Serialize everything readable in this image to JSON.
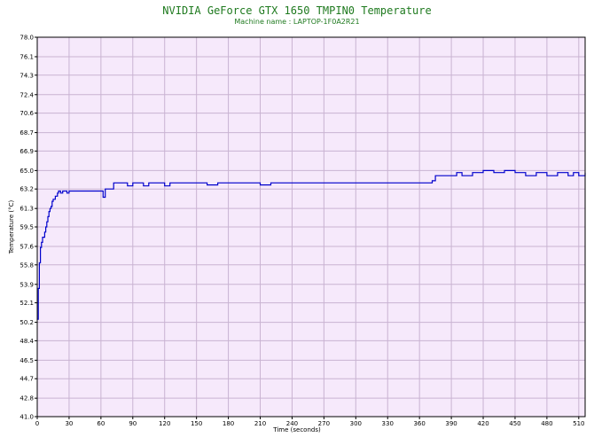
{
  "chart_data": {
    "type": "line",
    "title": "NVIDIA GeForce GTX 1650 TMPIN0 Temperature",
    "subtitle": "Machine name : LAPTOP-1F0A2R21",
    "xlabel": "Time (seconds)",
    "ylabel": "Temperature (°C)",
    "xlim": [
      0,
      516
    ],
    "ylim": [
      41.0,
      78.0
    ],
    "grid": true,
    "x_ticks": [
      "0",
      "30",
      "60",
      "90",
      "120",
      "150",
      "180",
      "210",
      "240",
      "270",
      "300",
      "330",
      "360",
      "390",
      "420",
      "450",
      "480",
      "510"
    ],
    "y_ticks": [
      "41.0",
      "42.8",
      "44.7",
      "46.5",
      "48.4",
      "50.2",
      "52.1",
      "53.9",
      "55.8",
      "57.6",
      "59.5",
      "61.3",
      "63.2",
      "65.0",
      "66.9",
      "68.7",
      "70.6",
      "72.4",
      "74.3",
      "76.1",
      "78.0"
    ],
    "colors": {
      "plot_background": "#f6e9fb",
      "grid": "#c9b3d2",
      "line": "#0000cc",
      "title": "#1f7a1f"
    },
    "series": [
      {
        "x": [
          0,
          1,
          2,
          3,
          4,
          5,
          6,
          7,
          8,
          9,
          10,
          11,
          12,
          13,
          14,
          15,
          16,
          17,
          18,
          19,
          20,
          21,
          22,
          24,
          26,
          28,
          30,
          35,
          40,
          45,
          50,
          55,
          60,
          62,
          64,
          66,
          68,
          70,
          72,
          75,
          80,
          85,
          90,
          95,
          100,
          105,
          110,
          115,
          120,
          125,
          130,
          135,
          140,
          150,
          160,
          170,
          180,
          190,
          200,
          210,
          220,
          230,
          240,
          250,
          260,
          270,
          280,
          290,
          300,
          310,
          320,
          330,
          340,
          350,
          360,
          365,
          370,
          372,
          375,
          380,
          390,
          395,
          400,
          410,
          420,
          425,
          430,
          440,
          450,
          460,
          470,
          480,
          490,
          500,
          505,
          510,
          516
        ],
        "y": [
          50.5,
          53.5,
          56.0,
          57.5,
          58.0,
          58.5,
          58.5,
          59.0,
          59.5,
          60.0,
          60.5,
          61.0,
          61.3,
          61.5,
          62.0,
          62.2,
          62.2,
          62.5,
          62.5,
          62.8,
          63.0,
          63.0,
          62.8,
          63.0,
          63.0,
          62.8,
          63.0,
          63.0,
          63.0,
          63.0,
          63.0,
          63.0,
          63.0,
          62.4,
          63.2,
          63.2,
          63.2,
          63.2,
          63.8,
          63.8,
          63.8,
          63.5,
          63.8,
          63.8,
          63.5,
          63.8,
          63.8,
          63.8,
          63.5,
          63.8,
          63.8,
          63.8,
          63.8,
          63.8,
          63.6,
          63.8,
          63.8,
          63.8,
          63.8,
          63.6,
          63.8,
          63.8,
          63.8,
          63.8,
          63.8,
          63.8,
          63.8,
          63.8,
          63.8,
          63.8,
          63.8,
          63.8,
          63.8,
          63.8,
          63.8,
          63.8,
          63.8,
          64.0,
          64.5,
          64.5,
          64.5,
          64.8,
          64.5,
          64.8,
          65.0,
          65.0,
          64.8,
          65.0,
          64.8,
          64.5,
          64.8,
          64.5,
          64.8,
          64.5,
          64.8,
          64.5,
          64.8
        ]
      }
    ]
  }
}
